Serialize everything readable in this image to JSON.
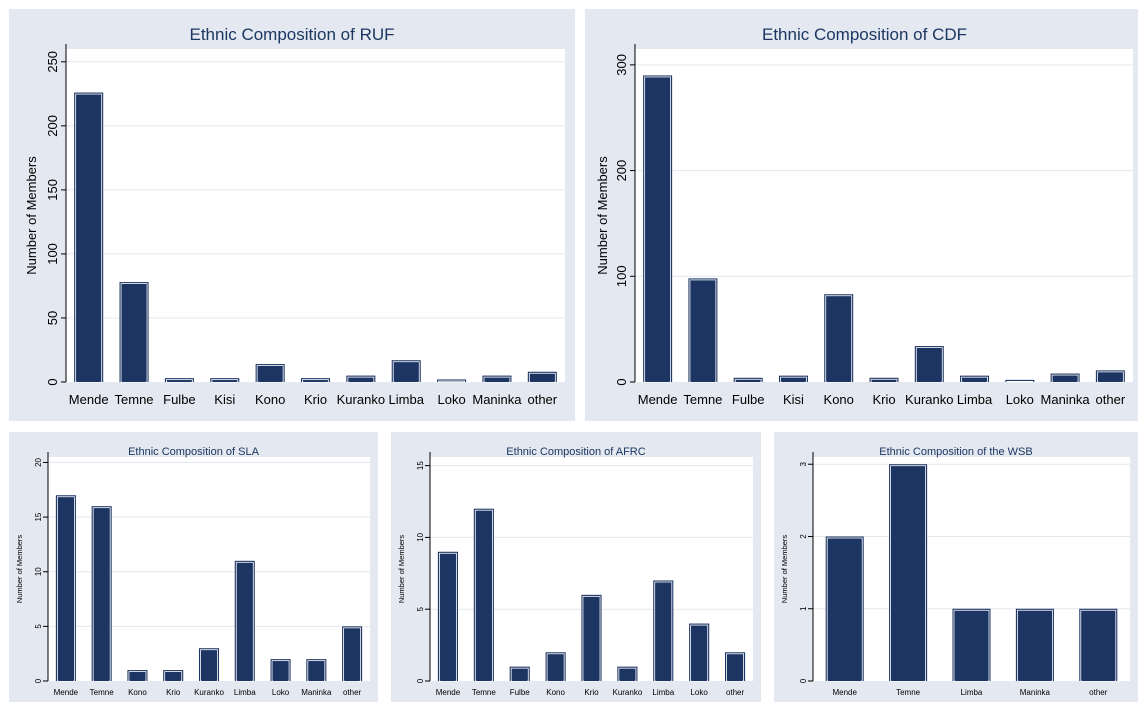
{
  "colors": {
    "panel_background": "#e4e8f0",
    "plot_background": "#ffffff",
    "bar_fill": "#1d3563",
    "title_color": "#1c3762"
  },
  "chart_data": [
    {
      "type": "bar",
      "title": "Ethnic Composition of RUF",
      "xlabel": "",
      "ylabel": "Number of Members",
      "categories": [
        "Mende",
        "Temne",
        "Fulbe",
        "Kisi",
        "Kono",
        "Krio",
        "Kuranko",
        "Limba",
        "Loko",
        "Maninka",
        "other"
      ],
      "values": [
        226,
        78,
        3,
        3,
        14,
        3,
        5,
        17,
        2,
        5,
        8
      ],
      "ylim": [
        0,
        260
      ],
      "yticks": [
        0,
        50,
        100,
        150,
        200,
        250
      ],
      "grid": true,
      "legend": "none"
    },
    {
      "type": "bar",
      "title": "Ethnic Composition of CDF",
      "xlabel": "",
      "ylabel": "Number of Members",
      "categories": [
        "Mende",
        "Temne",
        "Fulbe",
        "Kisi",
        "Kono",
        "Krio",
        "Kuranko",
        "Limba",
        "Loko",
        "Maninka",
        "other"
      ],
      "values": [
        290,
        98,
        4,
        6,
        83,
        4,
        34,
        6,
        2,
        8,
        11
      ],
      "ylim": [
        0,
        315
      ],
      "yticks": [
        0,
        100,
        200,
        300
      ],
      "grid": true,
      "legend": "none"
    },
    {
      "type": "bar",
      "title": "Ethnic Composition of SLA",
      "xlabel": "",
      "ylabel": "Number of Members",
      "categories": [
        "Mende",
        "Temne",
        "Kono",
        "Krio",
        "Kuranko",
        "Limba",
        "Loko",
        "Maninka",
        "other"
      ],
      "values": [
        17,
        16,
        1,
        1,
        3,
        11,
        2,
        2,
        5
      ],
      "ylim": [
        0,
        20.5
      ],
      "yticks": [
        0,
        5,
        10,
        15,
        20
      ],
      "grid": true,
      "legend": "none"
    },
    {
      "type": "bar",
      "title": "Ethnic Composition of AFRC",
      "xlabel": "",
      "ylabel": "Number of Members",
      "categories": [
        "Mende",
        "Temne",
        "Fulbe",
        "Kono",
        "Krio",
        "Kuranko",
        "Limba",
        "Loko",
        "other"
      ],
      "values": [
        9,
        12,
        1,
        2,
        6,
        1,
        7,
        4,
        2
      ],
      "ylim": [
        0,
        15.6
      ],
      "yticks": [
        0,
        5,
        10,
        15
      ],
      "grid": true,
      "legend": "none"
    },
    {
      "type": "bar",
      "title": "Ethnic Composition of the WSB",
      "xlabel": "",
      "ylabel": "Number of Members",
      "categories": [
        "Mende",
        "Temne",
        "Limba",
        "Maninka",
        "other"
      ],
      "values": [
        2,
        3,
        1,
        1,
        1
      ],
      "ylim": [
        0,
        3.1
      ],
      "yticks": [
        0,
        1,
        2,
        3
      ],
      "grid": true,
      "legend": "none"
    }
  ]
}
